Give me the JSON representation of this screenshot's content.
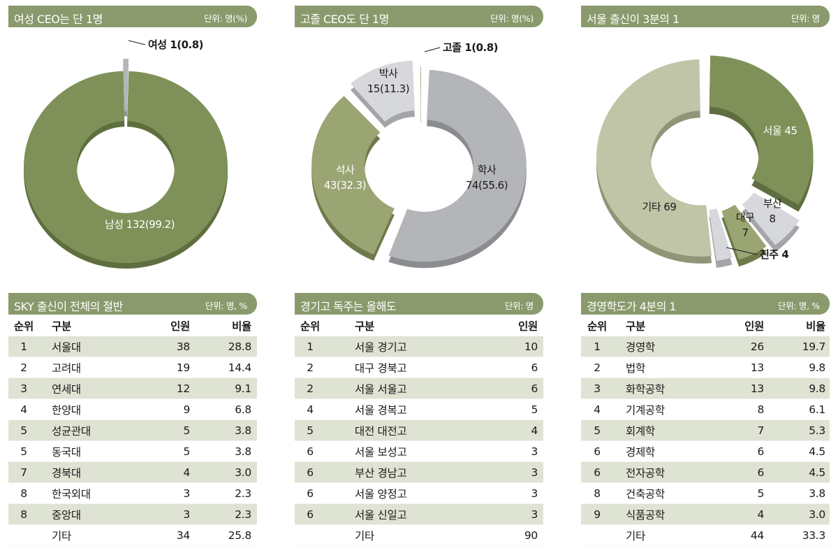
{
  "chart_data": [
    {
      "type": "pie",
      "title": "여성 CEO는 단 1명",
      "unit": "단위: 명(%)",
      "slices": [
        {
          "label": "남성",
          "value": 132,
          "display": "남성 132(99.2)"
        },
        {
          "label": "여성",
          "value": 1,
          "display": "여성 1(0.8)"
        }
      ]
    },
    {
      "type": "pie",
      "title": "고졸 CEO도 단 1명",
      "unit": "단위: 명(%)",
      "slices": [
        {
          "label": "고졸",
          "value": 1,
          "display": "고졸 1(0.8)"
        },
        {
          "label": "학사",
          "value": 74,
          "display_line1": "학사",
          "display_line2": "74(55.6)"
        },
        {
          "label": "석사",
          "value": 43,
          "display_line1": "석사",
          "display_line2": "43(32.3)"
        },
        {
          "label": "박사",
          "value": 15,
          "display_line1": "박사",
          "display_line2": "15(11.3)"
        }
      ]
    },
    {
      "type": "pie",
      "title": "서울 출신이 3분의 1",
      "unit": "단위: 명",
      "slices": [
        {
          "label": "서울",
          "value": 45,
          "display": "서울 45"
        },
        {
          "label": "부산",
          "value": 8,
          "display_line1": "부산",
          "display_line2": "8"
        },
        {
          "label": "대구",
          "value": 7,
          "display_line1": "대구",
          "display_line2": "7"
        },
        {
          "label": "진주",
          "value": 4,
          "display": "진주 4"
        },
        {
          "label": "기타",
          "value": 69,
          "display": "기타 69"
        }
      ]
    },
    {
      "type": "table",
      "title": "SKY 출신이 전체의 절반",
      "unit": "단위: 명, %",
      "columns": [
        "순위",
        "구분",
        "인원",
        "비율"
      ],
      "rows": [
        [
          "1",
          "서울대",
          "38",
          "28.8"
        ],
        [
          "2",
          "고려대",
          "19",
          "14.4"
        ],
        [
          "3",
          "연세대",
          "12",
          "9.1"
        ],
        [
          "4",
          "한양대",
          "9",
          "6.8"
        ],
        [
          "5",
          "성균관대",
          "5",
          "3.8"
        ],
        [
          "5",
          "동국대",
          "5",
          "3.8"
        ],
        [
          "7",
          "경북대",
          "4",
          "3.0"
        ],
        [
          "8",
          "한국외대",
          "3",
          "2.3"
        ],
        [
          "8",
          "중앙대",
          "3",
          "2.3"
        ],
        [
          "",
          "기타",
          "34",
          "25.8"
        ]
      ]
    },
    {
      "type": "table",
      "title": "경기고 독주는 올해도",
      "unit": "단위: 명",
      "columns": [
        "순위",
        "구분",
        "인원"
      ],
      "rows": [
        [
          "1",
          "서울 경기고",
          "10"
        ],
        [
          "2",
          "대구 경북고",
          "6"
        ],
        [
          "2",
          "서울 서울고",
          "6"
        ],
        [
          "4",
          "서울 경복고",
          "5"
        ],
        [
          "5",
          "대전 대전고",
          "4"
        ],
        [
          "6",
          "서울 보성고",
          "3"
        ],
        [
          "6",
          "부산 경남고",
          "3"
        ],
        [
          "6",
          "서울 양정고",
          "3"
        ],
        [
          "6",
          "서울 신일고",
          "3"
        ],
        [
          "",
          "기타",
          "90"
        ]
      ]
    },
    {
      "type": "table",
      "title": "경영학도가 4분의 1",
      "unit": "단위: 명, %",
      "columns": [
        "순위",
        "구분",
        "인원",
        "비율"
      ],
      "rows": [
        [
          "1",
          "경영학",
          "26",
          "19.7"
        ],
        [
          "2",
          "법학",
          "13",
          "9.8"
        ],
        [
          "3",
          "화학공학",
          "13",
          "9.8"
        ],
        [
          "4",
          "기계공학",
          "8",
          "6.1"
        ],
        [
          "5",
          "회계학",
          "7",
          "5.3"
        ],
        [
          "6",
          "경제학",
          "6",
          "4.5"
        ],
        [
          "6",
          "전자공학",
          "6",
          "4.5"
        ],
        [
          "8",
          "건축공학",
          "5",
          "3.8"
        ],
        [
          "9",
          "식품공학",
          "4",
          "3.0"
        ],
        [
          "",
          "기타",
          "44",
          "33.3"
        ]
      ]
    }
  ],
  "colors": {
    "header": "#8a9a6c",
    "dark_green": "#7f9158",
    "dark_green_side": "#5e6e3e",
    "mid_green": "#9aa573",
    "mid_green_side": "#6f7a4a",
    "light_green": "#bfc5a6",
    "light_green_side": "#8f9677",
    "gray": "#b3b5b8",
    "gray_side": "#8a8c90",
    "light_gray": "#d7d8db",
    "light_gray_side": "#a3a5a9",
    "table_stripe": "#dfe3d3"
  }
}
